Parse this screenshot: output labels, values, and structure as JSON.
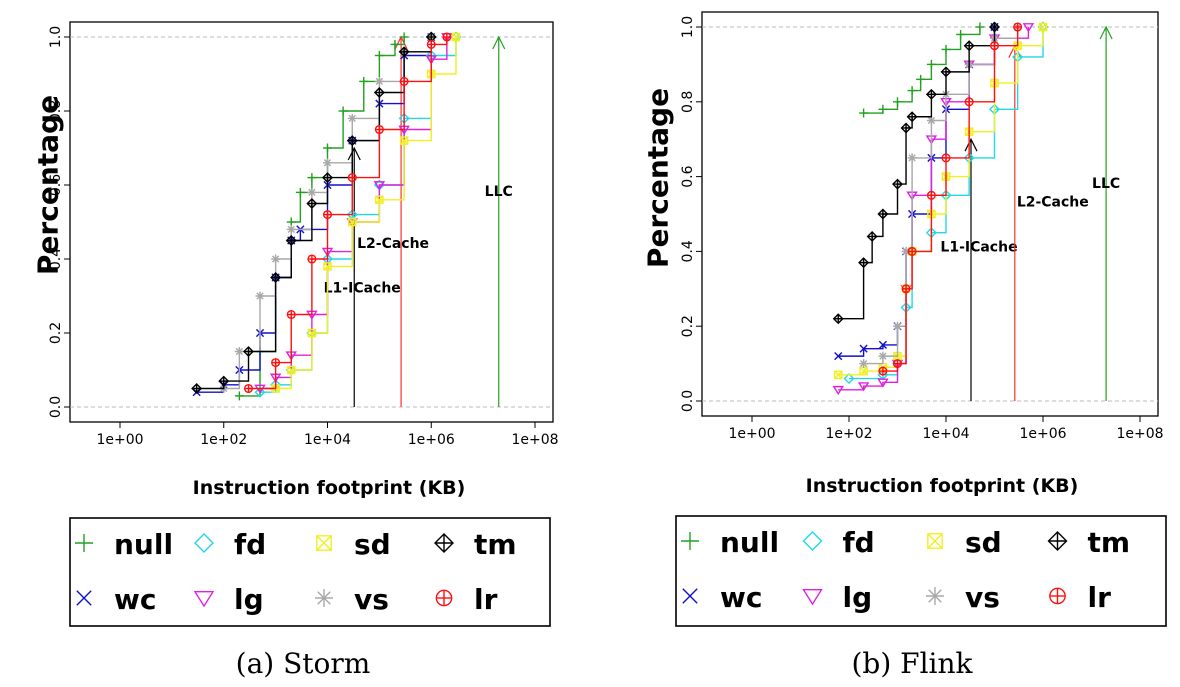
{
  "chart_data": [
    {
      "type": "scatter",
      "subtitle": "(a) Storm",
      "xlabel": "Instruction footprint (KB)",
      "ylabel": "Percentage",
      "xscale": "log",
      "xlim": [
        1,
        100000000
      ],
      "ylim": [
        0,
        1
      ],
      "x_ticks": [
        "1e+00",
        "1e+02",
        "1e+04",
        "1e+06",
        "1e+08"
      ],
      "y_ticks": [
        "0.0",
        "0.2",
        "0.4",
        "0.6",
        "0.8",
        "1.0"
      ],
      "grid": "horizontal dashed at 0 and 1",
      "legend_position": "below",
      "series": [
        {
          "name": "null",
          "color": "#22a022",
          "marker": "plus",
          "x": [
            200,
            500,
            1000,
            2000,
            3000,
            5000,
            10000,
            20000,
            50000,
            100000,
            200000,
            300000
          ],
          "y": [
            0.03,
            0.15,
            0.35,
            0.5,
            0.58,
            0.62,
            0.7,
            0.8,
            0.88,
            0.95,
            0.98,
            1.0
          ]
        },
        {
          "name": "wc",
          "color": "#1010cc",
          "marker": "x",
          "x": [
            30,
            100,
            200,
            500,
            1000,
            2000,
            3000,
            10000,
            30000,
            100000,
            300000,
            1000000
          ],
          "y": [
            0.04,
            0.06,
            0.1,
            0.2,
            0.35,
            0.45,
            0.48,
            0.6,
            0.72,
            0.82,
            0.95,
            1.0
          ]
        },
        {
          "name": "fd",
          "color": "#22d8e8",
          "marker": "diamond",
          "x": [
            500,
            1000,
            2000,
            5000,
            10000,
            30000,
            100000,
            300000,
            1000000,
            3000000
          ],
          "y": [
            0.04,
            0.06,
            0.1,
            0.2,
            0.4,
            0.52,
            0.6,
            0.78,
            0.95,
            1.0
          ]
        },
        {
          "name": "lg",
          "color": "#e020e0",
          "marker": "triangle-down",
          "x": [
            500,
            1000,
            2000,
            5000,
            10000,
            30000,
            100000,
            300000,
            1000000,
            2000000
          ],
          "y": [
            0.05,
            0.08,
            0.14,
            0.25,
            0.42,
            0.5,
            0.6,
            0.75,
            0.94,
            1.0
          ]
        },
        {
          "name": "sd",
          "color": "#f0f020",
          "marker": "boxed-x",
          "x": [
            1000,
            2000,
            5000,
            10000,
            30000,
            100000,
            300000,
            1000000,
            3000000
          ],
          "y": [
            0.05,
            0.1,
            0.2,
            0.38,
            0.5,
            0.56,
            0.72,
            0.9,
            1.0
          ]
        },
        {
          "name": "vs",
          "color": "#a8a8a8",
          "marker": "star",
          "x": [
            100,
            200,
            500,
            1000,
            2000,
            5000,
            10000,
            30000,
            100000,
            300000,
            1000000
          ],
          "y": [
            0.05,
            0.15,
            0.3,
            0.4,
            0.48,
            0.58,
            0.66,
            0.78,
            0.88,
            0.96,
            1.0
          ]
        },
        {
          "name": "tm",
          "color": "#000000",
          "marker": "diamond-plus",
          "x": [
            30,
            100,
            300,
            1000,
            2000,
            5000,
            10000,
            30000,
            100000,
            300000,
            1000000
          ],
          "y": [
            0.05,
            0.07,
            0.15,
            0.35,
            0.45,
            0.55,
            0.62,
            0.72,
            0.85,
            0.96,
            1.0
          ]
        },
        {
          "name": "lr",
          "color": "#ff1010",
          "marker": "circle-plus",
          "x": [
            300,
            1000,
            2000,
            5000,
            10000,
            30000,
            100000,
            300000,
            1000000,
            2000000
          ],
          "y": [
            0.05,
            0.12,
            0.25,
            0.4,
            0.52,
            0.62,
            0.75,
            0.88,
            0.98,
            1.0
          ]
        }
      ],
      "annotations": [
        {
          "label": "L1-ICache",
          "x": 32768,
          "color": "#000000",
          "y_top": 0.7
        },
        {
          "label": "L2-Cache",
          "x": 262144,
          "color": "#ff3030",
          "y_top": 1.0
        },
        {
          "label": "LLC",
          "x": 20000000,
          "color": "#22a022",
          "y_top": 1.0
        }
      ]
    },
    {
      "type": "scatter",
      "subtitle": "(b) Flink",
      "xlabel": "Instruction footprint (KB)",
      "ylabel": "Percentage",
      "xscale": "log",
      "xlim": [
        1,
        100000000
      ],
      "ylim": [
        0,
        1
      ],
      "x_ticks": [
        "1e+00",
        "1e+02",
        "1e+04",
        "1e+06",
        "1e+08"
      ],
      "y_ticks": [
        "0.0",
        "0.2",
        "0.4",
        "0.6",
        "0.8",
        "1.0"
      ],
      "grid": "horizontal dashed at 0 and 1",
      "legend_position": "below",
      "series": [
        {
          "name": "null",
          "color": "#22a022",
          "marker": "plus",
          "x": [
            200,
            500,
            1000,
            2000,
            3000,
            5000,
            10000,
            20000,
            50000
          ],
          "y": [
            0.77,
            0.78,
            0.8,
            0.83,
            0.86,
            0.9,
            0.94,
            0.98,
            1.0
          ]
        },
        {
          "name": "wc",
          "color": "#1010cc",
          "marker": "x",
          "x": [
            60,
            200,
            500,
            1000,
            1500,
            2000,
            5000,
            10000,
            30000,
            100000
          ],
          "y": [
            0.12,
            0.14,
            0.15,
            0.2,
            0.4,
            0.5,
            0.65,
            0.78,
            0.9,
            1.0
          ]
        },
        {
          "name": "fd",
          "color": "#22d8e8",
          "marker": "diamond",
          "x": [
            100,
            500,
            1000,
            1500,
            2000,
            5000,
            10000,
            30000,
            100000,
            300000,
            1000000
          ],
          "y": [
            0.06,
            0.07,
            0.1,
            0.25,
            0.4,
            0.45,
            0.55,
            0.65,
            0.78,
            0.92,
            1.0
          ]
        },
        {
          "name": "lg",
          "color": "#e020e0",
          "marker": "triangle-down",
          "x": [
            60,
            200,
            500,
            1000,
            1500,
            2000,
            5000,
            10000,
            30000,
            100000,
            500000
          ],
          "y": [
            0.03,
            0.04,
            0.05,
            0.1,
            0.3,
            0.55,
            0.7,
            0.8,
            0.9,
            0.97,
            1.0
          ]
        },
        {
          "name": "sd",
          "color": "#f0f020",
          "marker": "boxed-x",
          "x": [
            60,
            200,
            500,
            1000,
            1500,
            2000,
            5000,
            10000,
            30000,
            100000,
            300000,
            1000000
          ],
          "y": [
            0.07,
            0.08,
            0.09,
            0.12,
            0.3,
            0.4,
            0.5,
            0.6,
            0.72,
            0.85,
            0.95,
            1.0
          ]
        },
        {
          "name": "vs",
          "color": "#a8a8a8",
          "marker": "star",
          "x": [
            200,
            500,
            1000,
            1500,
            2000,
            5000,
            10000,
            30000,
            100000,
            300000
          ],
          "y": [
            0.1,
            0.12,
            0.2,
            0.4,
            0.65,
            0.75,
            0.82,
            0.9,
            0.97,
            1.0
          ]
        },
        {
          "name": "tm",
          "color": "#000000",
          "marker": "diamond-plus",
          "x": [
            60,
            200,
            300,
            500,
            1000,
            1500,
            2000,
            5000,
            10000,
            30000,
            100000
          ],
          "y": [
            0.22,
            0.37,
            0.44,
            0.5,
            0.58,
            0.73,
            0.76,
            0.82,
            0.88,
            0.95,
            1.0
          ]
        },
        {
          "name": "lr",
          "color": "#ff1010",
          "marker": "circle-plus",
          "x": [
            500,
            1000,
            1500,
            2000,
            5000,
            10000,
            30000,
            100000,
            300000
          ],
          "y": [
            0.08,
            0.1,
            0.3,
            0.4,
            0.55,
            0.65,
            0.8,
            0.95,
            1.0
          ]
        }
      ],
      "annotations": [
        {
          "label": "L1-ICache",
          "x": 32768,
          "color": "#000000",
          "y_top": 0.7
        },
        {
          "label": "L2-Cache",
          "x": 262144,
          "color": "#ff3030",
          "y_top": 0.95
        },
        {
          "label": "LLC",
          "x": 20000000,
          "color": "#22a022",
          "y_top": 1.0
        }
      ]
    }
  ],
  "legend": {
    "items": [
      {
        "name": "null",
        "marker": "plus",
        "color": "#22a022"
      },
      {
        "name": "fd",
        "marker": "diamond",
        "color": "#22d8e8"
      },
      {
        "name": "sd",
        "marker": "boxed-x",
        "color": "#f0f020"
      },
      {
        "name": "tm",
        "marker": "diamond-plus",
        "color": "#000000"
      },
      {
        "name": "wc",
        "marker": "x",
        "color": "#1010cc"
      },
      {
        "name": "lg",
        "marker": "triangle-down",
        "color": "#e020e0"
      },
      {
        "name": "vs",
        "marker": "star",
        "color": "#a8a8a8"
      },
      {
        "name": "lr",
        "marker": "circle-plus",
        "color": "#ff1010"
      }
    ]
  }
}
